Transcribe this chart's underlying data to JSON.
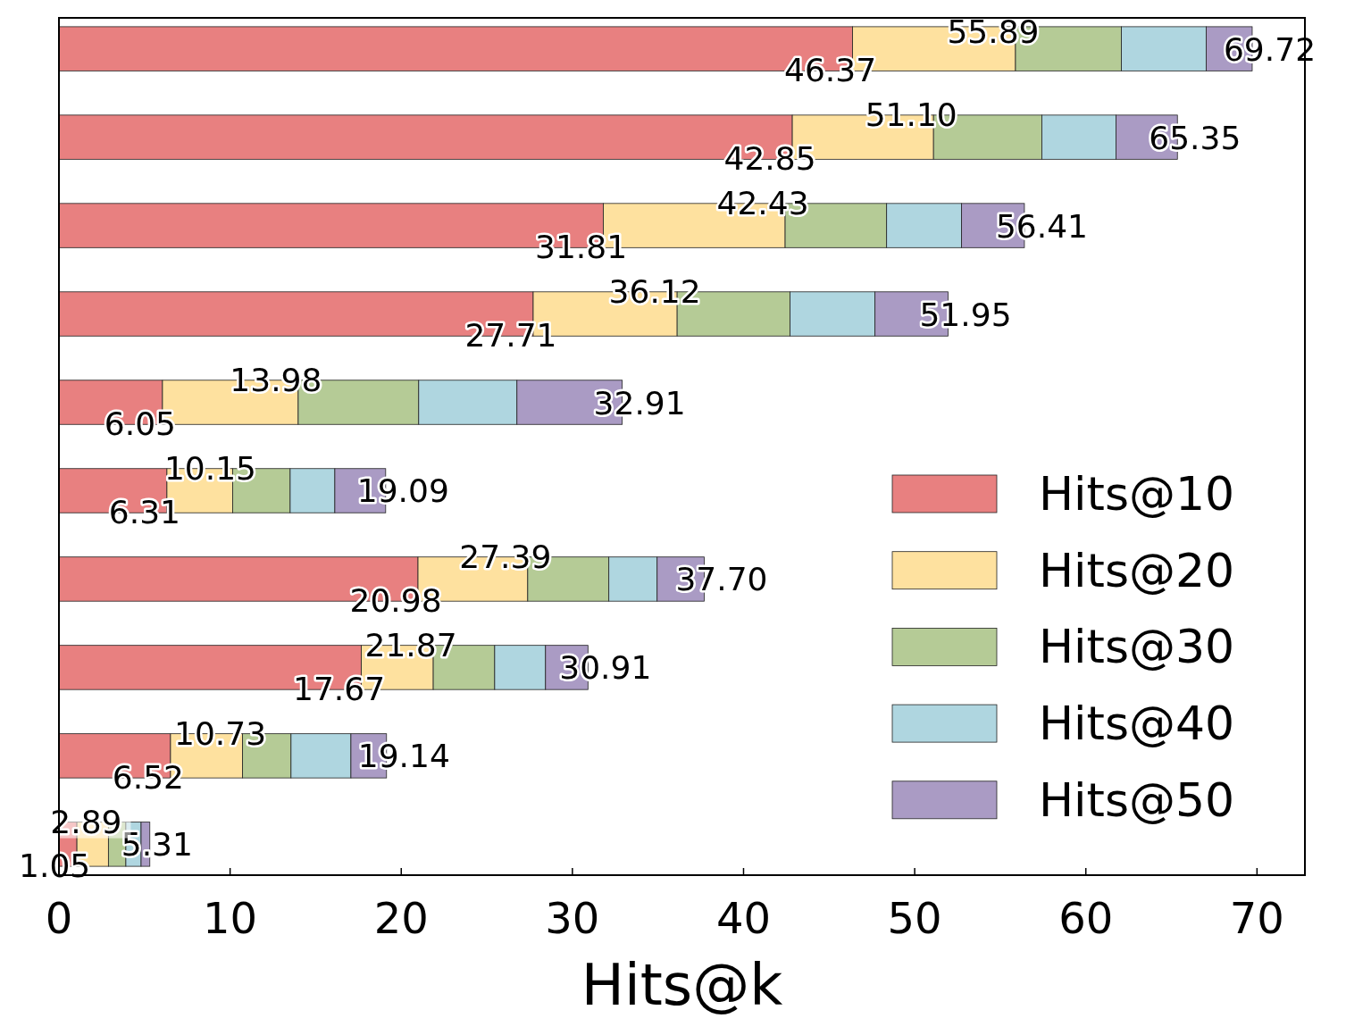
{
  "chart_data": {
    "type": "bar",
    "orientation": "horizontal",
    "stacked": true,
    "categories": [
      null,
      null,
      null,
      null,
      null,
      null,
      null,
      null,
      null,
      null
    ],
    "xlabel": "Hits@k",
    "series": [
      {
        "name": "Hits@10",
        "color": "#e88080",
        "values": [
          46.37,
          42.85,
          31.81,
          27.71,
          6.05,
          6.31,
          20.98,
          17.67,
          6.52,
          1.05
        ],
        "value_labels": [
          "46.37",
          "42.85",
          "31.81",
          "27.71",
          "6.05",
          "6.31",
          "20.98",
          "17.67",
          "6.52",
          "1.05"
        ]
      },
      {
        "name": "Hits@20",
        "color": "#fee19f",
        "values": [
          9.52,
          8.25,
          10.62,
          8.41,
          7.93,
          3.84,
          6.41,
          4.2,
          4.21,
          1.84
        ]
      },
      {
        "name": "Hits@30",
        "color": "#b5cb96",
        "values": [
          6.19,
          6.33,
          5.93,
          6.6,
          7.04,
          3.36,
          4.74,
          3.59,
          2.83,
          1.02
        ]
      },
      {
        "name": "Hits@40",
        "color": "#afd6e0",
        "values": [
          4.95,
          4.33,
          4.38,
          4.96,
          5.74,
          2.61,
          2.82,
          2.97,
          3.5,
          0.89
        ]
      },
      {
        "name": "Hits@50",
        "color": "#aa9bc4",
        "values": [
          2.69,
          3.59,
          3.67,
          4.27,
          6.15,
          2.97,
          2.75,
          2.48,
          2.08,
          0.51
        ]
      }
    ],
    "totals": [
      "69.72",
      "65.35",
      "56.41",
      "51.95",
      "32.91",
      "19.09",
      "37.70",
      "30.91",
      "19.14",
      "5.31"
    ],
    "annotations": [
      {
        "text": "55.89",
        "x": 55.89
      },
      {
        "text": "51.10",
        "x": 51.1
      },
      {
        "text": "42.43",
        "x": 42.43
      },
      {
        "text": "36.12",
        "x": 36.12
      },
      {
        "text": "13.98",
        "x": 13.98
      },
      {
        "text": "10.15",
        "x": 10.15
      },
      {
        "text": "27.39",
        "x": 27.39
      },
      {
        "text": "21.87",
        "x": 21.87
      },
      {
        "text": "10.73",
        "x": 10.73
      },
      {
        "text": "2.89",
        "x": 2.89
      }
    ],
    "xlim": [
      0,
      72.8
    ],
    "xticks": [
      0,
      10,
      20,
      30,
      40,
      50,
      60,
      70
    ],
    "grid": false,
    "legend": "bottom right"
  }
}
